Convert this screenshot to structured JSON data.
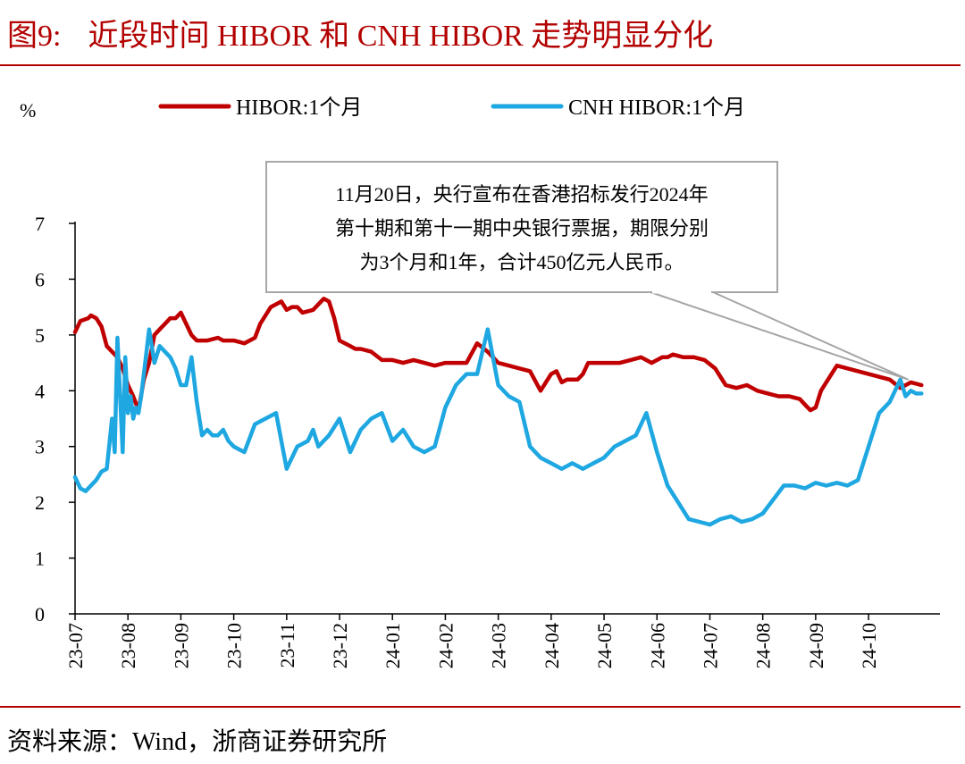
{
  "header": {
    "fig_num": "图9:",
    "title": "近段时间 HIBOR 和 CNH HIBOR 走势明显分化"
  },
  "source": "资料来源：Wind，浙商证券研究所",
  "chart_data": {
    "type": "line",
    "ylabel": "%",
    "ylim": [
      0,
      7
    ],
    "yticks": [
      "0",
      "1",
      "2",
      "3",
      "4",
      "5",
      "6",
      "7"
    ],
    "xtick_labels": [
      "23-07",
      "23-08",
      "23-09",
      "23-10",
      "23-11",
      "23-12",
      "24-01",
      "24-02",
      "24-03",
      "24-04",
      "24-05",
      "24-06",
      "24-07",
      "24-08",
      "24-09",
      "24-10"
    ],
    "legend_position": "top",
    "series": [
      {
        "name": "HIBOR:1个月",
        "color": "#c00000",
        "x": [
          0,
          0.1,
          0.25,
          0.3,
          0.4,
          0.5,
          0.6,
          0.7,
          0.8,
          0.9,
          1.0,
          1.1,
          1.2,
          1.3,
          1.4,
          1.5,
          1.6,
          1.7,
          1.8,
          1.9,
          2.0,
          2.2,
          2.3,
          2.5,
          2.7,
          2.8,
          3.0,
          3.2,
          3.4,
          3.5,
          3.7,
          3.9,
          4.0,
          4.1,
          4.2,
          4.3,
          4.5,
          4.7,
          4.8,
          4.9,
          5.0,
          5.2,
          5.3,
          5.4,
          5.6,
          5.8,
          6.0,
          6.2,
          6.4,
          6.6,
          6.8,
          7.0,
          7.2,
          7.4,
          7.6,
          7.8,
          8.0,
          8.2,
          8.4,
          8.6,
          8.8,
          9.0,
          9.1,
          9.2,
          9.3,
          9.5,
          9.6,
          9.7,
          9.8,
          9.9,
          10.1,
          10.3,
          10.5,
          10.7,
          10.9,
          11.1,
          11.2,
          11.3,
          11.5,
          11.7,
          11.9,
          12.1,
          12.3,
          12.5,
          12.7,
          12.9,
          13.1,
          13.3,
          13.5,
          13.7,
          13.8,
          13.9,
          14.0,
          14.1,
          14.2,
          14.4,
          14.6,
          14.8,
          15.0,
          15.2,
          15.4,
          15.6,
          15.8,
          16.0
        ],
        "y": [
          5.05,
          5.25,
          5.3,
          5.35,
          5.3,
          5.15,
          4.8,
          4.7,
          4.6,
          4.4,
          4.1,
          3.9,
          3.65,
          4.2,
          4.5,
          5.0,
          5.1,
          5.2,
          5.3,
          5.3,
          5.4,
          5.0,
          4.9,
          4.9,
          4.95,
          4.9,
          4.9,
          4.85,
          4.95,
          5.2,
          5.5,
          5.6,
          5.45,
          5.5,
          5.5,
          5.4,
          5.45,
          5.65,
          5.6,
          5.3,
          4.9,
          4.8,
          4.75,
          4.75,
          4.7,
          4.55,
          4.55,
          4.5,
          4.55,
          4.5,
          4.45,
          4.5,
          4.5,
          4.5,
          4.85,
          4.7,
          4.5,
          4.45,
          4.4,
          4.35,
          4.0,
          4.3,
          4.35,
          4.15,
          4.2,
          4.2,
          4.3,
          4.5,
          4.5,
          4.5,
          4.5,
          4.5,
          4.55,
          4.6,
          4.5,
          4.6,
          4.6,
          4.65,
          4.6,
          4.6,
          4.55,
          4.4,
          4.1,
          4.05,
          4.1,
          4.0,
          3.95,
          3.9,
          3.9,
          3.85,
          3.75,
          3.65,
          3.7,
          4.0,
          4.15,
          4.45,
          4.4,
          4.35,
          4.3,
          4.25,
          4.2,
          4.05,
          4.15,
          4.1
        ]
      },
      {
        "name": "CNH HIBOR:1个月",
        "color": "#1ea7e1",
        "x": [
          0,
          0.1,
          0.2,
          0.3,
          0.4,
          0.5,
          0.6,
          0.7,
          0.75,
          0.8,
          0.9,
          0.95,
          1.0,
          1.05,
          1.1,
          1.15,
          1.2,
          1.25,
          1.3,
          1.4,
          1.5,
          1.6,
          1.7,
          1.8,
          1.9,
          2.0,
          2.1,
          2.2,
          2.3,
          2.4,
          2.5,
          2.6,
          2.7,
          2.8,
          2.9,
          3.0,
          3.2,
          3.4,
          3.6,
          3.8,
          4.0,
          4.2,
          4.4,
          4.5,
          4.6,
          4.8,
          5.0,
          5.2,
          5.4,
          5.6,
          5.8,
          6.0,
          6.2,
          6.4,
          6.6,
          6.8,
          7.0,
          7.2,
          7.4,
          7.6,
          7.8,
          8.0,
          8.2,
          8.4,
          8.6,
          8.8,
          9.0,
          9.2,
          9.4,
          9.6,
          9.8,
          10.0,
          10.2,
          10.4,
          10.6,
          10.8,
          11.0,
          11.2,
          11.4,
          11.6,
          11.8,
          12.0,
          12.2,
          12.4,
          12.6,
          12.8,
          13.0,
          13.2,
          13.4,
          13.6,
          13.8,
          14.0,
          14.2,
          14.4,
          14.6,
          14.8,
          15.0,
          15.2,
          15.4,
          15.6,
          15.7,
          15.8,
          15.9,
          16.0
        ],
        "y": [
          2.45,
          2.25,
          2.2,
          2.3,
          2.4,
          2.55,
          2.6,
          3.5,
          2.9,
          4.95,
          2.9,
          4.6,
          3.6,
          3.9,
          3.5,
          3.7,
          3.6,
          3.9,
          4.3,
          5.1,
          4.5,
          4.8,
          4.7,
          4.6,
          4.4,
          4.1,
          4.1,
          4.6,
          3.8,
          3.2,
          3.3,
          3.2,
          3.2,
          3.3,
          3.1,
          3.0,
          2.9,
          3.4,
          3.5,
          3.6,
          2.6,
          3.0,
          3.1,
          3.3,
          3.0,
          3.2,
          3.5,
          2.9,
          3.3,
          3.5,
          3.6,
          3.1,
          3.3,
          3.0,
          2.9,
          3.0,
          3.7,
          4.1,
          4.3,
          4.3,
          5.1,
          4.1,
          3.9,
          3.8,
          3.0,
          2.8,
          2.7,
          2.6,
          2.7,
          2.6,
          2.7,
          2.8,
          3.0,
          3.1,
          3.2,
          3.6,
          2.9,
          2.3,
          2.0,
          1.7,
          1.65,
          1.6,
          1.7,
          1.75,
          1.65,
          1.7,
          1.8,
          2.05,
          2.3,
          2.3,
          2.25,
          2.35,
          2.3,
          2.35,
          2.3,
          2.4,
          3.0,
          3.6,
          3.8,
          4.2,
          3.9,
          4.0,
          3.95,
          3.95
        ]
      }
    ],
    "annotation": "11月20日，央行宣布在香港招标发行2024年\n第十期和第十一期中央银行票据，期限分别\n为3个月和1年，合计450亿元人民币。"
  }
}
